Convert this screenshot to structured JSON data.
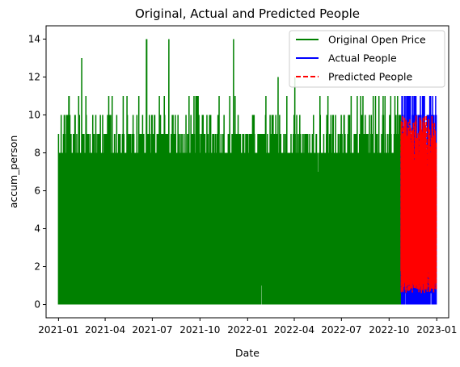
{
  "chart_data": {
    "type": "line",
    "title": "Original, Actual and Predicted People",
    "xlabel": "Date",
    "ylabel": "accum_person",
    "ylim": [
      -0.7,
      14.7
    ],
    "xlim": [
      "2020-12-08",
      "2023-01-24"
    ],
    "x_ticks": [
      "2021-01",
      "2021-04",
      "2021-07",
      "2021-10",
      "2022-01",
      "2022-04",
      "2022-07",
      "2022-10",
      "2023-01"
    ],
    "x_tick_dates": [
      "2021-01-01",
      "2021-04-01",
      "2021-07-01",
      "2021-10-01",
      "2022-01-01",
      "2022-04-01",
      "2022-07-01",
      "2022-10-01",
      "2023-01-01"
    ],
    "y_ticks": [
      0,
      2,
      4,
      6,
      8,
      10,
      12,
      14
    ],
    "y_tick_labels": [
      "0",
      "2",
      "4",
      "6",
      "8",
      "10",
      "12",
      "14"
    ],
    "legend_position": "top-right",
    "series": [
      {
        "name": "Original Open Price",
        "color": "#008000",
        "style": "solid",
        "range": [
          "2021-01-01",
          "2022-10-24"
        ],
        "min": 0,
        "max": 14,
        "typical_high": 9,
        "peaks": [
          {
            "date": "2021-01-05",
            "value": 7
          },
          {
            "date": "2021-01-12",
            "value": 10
          },
          {
            "date": "2021-02-15",
            "value": 13
          },
          {
            "date": "2021-06-20",
            "value": 14
          },
          {
            "date": "2021-08-02",
            "value": 14
          },
          {
            "date": "2021-09-10",
            "value": 11
          },
          {
            "date": "2021-12-05",
            "value": 14
          },
          {
            "date": "2022-03-01",
            "value": 12
          },
          {
            "date": "2022-04-02",
            "value": 12
          },
          {
            "date": "2022-07-20",
            "value": 11
          },
          {
            "date": "2022-09-05",
            "value": 11
          }
        ]
      },
      {
        "name": "Actual People",
        "color": "#0000ff",
        "style": "solid",
        "range": [
          "2022-10-24",
          "2022-12-31"
        ],
        "min": 0,
        "max": 11
      },
      {
        "name": "Predicted People",
        "color": "#ff0000",
        "style": "dashed",
        "range": [
          "2022-10-24",
          "2022-12-31"
        ],
        "min": 0.5,
        "max": 10
      }
    ]
  }
}
